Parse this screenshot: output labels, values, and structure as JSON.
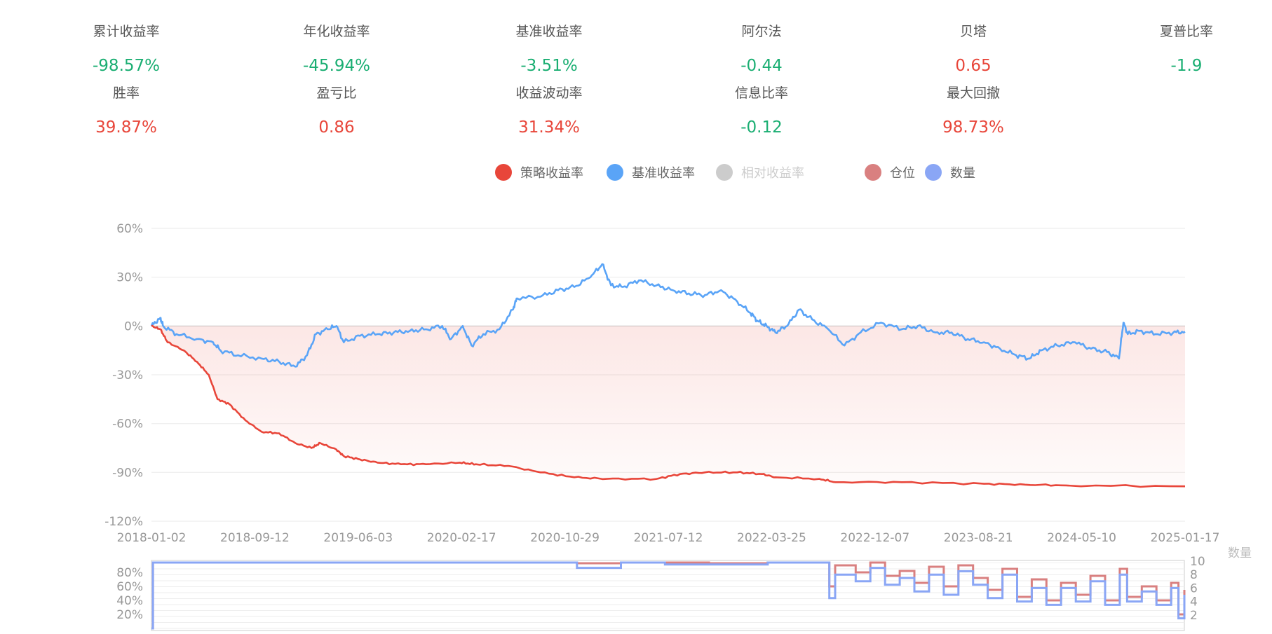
{
  "stats": [
    {
      "label": "累计收益率",
      "value": "-98.57%",
      "tone": "neg"
    },
    {
      "label": "年化收益率",
      "value": "-45.94%",
      "tone": "neg"
    },
    {
      "label": "基准收益率",
      "value": "-3.51%",
      "tone": "neg"
    },
    {
      "label": "阿尔法",
      "value": "-0.44",
      "tone": "neg"
    },
    {
      "label": "贝塔",
      "value": "0.65",
      "tone": "pos"
    },
    {
      "label": "夏普比率",
      "value": "-1.9",
      "tone": "neg"
    },
    {
      "label": "胜率",
      "value": "39.87%",
      "tone": "pos"
    },
    {
      "label": "盈亏比",
      "value": "0.86",
      "tone": "pos"
    },
    {
      "label": "收益波动率",
      "value": "31.34%",
      "tone": "pos"
    },
    {
      "label": "信息比率",
      "value": "-0.12",
      "tone": "neg"
    },
    {
      "label": "最大回撤",
      "value": "98.73%",
      "tone": "pos"
    }
  ],
  "legend": [
    {
      "label": "策略收益率",
      "color": "#e8463a",
      "active": true
    },
    {
      "label": "基准收益率",
      "color": "#5aa4f7",
      "active": true
    },
    {
      "label": "相对收益率",
      "color": "#cccccc",
      "active": false
    },
    {
      "label": "仓位",
      "color": "#d98080",
      "active": true
    },
    {
      "label": "数量",
      "color": "#8aa6f5",
      "active": true
    }
  ],
  "chart_data": [
    {
      "type": "line",
      "x_unit": "year",
      "xlim": [
        2018.0,
        2025.04
      ],
      "ylim": [
        -120,
        60
      ],
      "yticks": [
        60,
        30,
        0,
        -30,
        -60,
        -90,
        -120
      ],
      "ytick_labels": [
        "60%",
        "30%",
        "0%",
        "-30%",
        "-60%",
        "-90%",
        "-120%"
      ],
      "xtick_labels": [
        "2018-01-02",
        "2018-09-12",
        "2019-06-03",
        "2020-02-17",
        "2020-10-29",
        "2021-07-12",
        "2022-03-25",
        "2022-12-07",
        "2023-08-21",
        "2024-05-10",
        "2025-01-17"
      ],
      "series": [
        {
          "name": "策略收益率",
          "color": "#e8463a",
          "points": [
            [
              2018.0,
              0
            ],
            [
              2018.06,
              -2
            ],
            [
              2018.11,
              -10
            ],
            [
              2018.22,
              -15
            ],
            [
              2018.31,
              -22
            ],
            [
              2018.39,
              -30
            ],
            [
              2018.45,
              -45
            ],
            [
              2018.53,
              -48
            ],
            [
              2018.64,
              -58
            ],
            [
              2018.75,
              -65
            ],
            [
              2018.87,
              -66
            ],
            [
              2018.98,
              -72
            ],
            [
              2019.09,
              -75
            ],
            [
              2019.15,
              -72
            ],
            [
              2019.26,
              -76
            ],
            [
              2019.31,
              -80
            ],
            [
              2019.42,
              -82
            ],
            [
              2019.54,
              -84
            ],
            [
              2019.7,
              -85
            ],
            [
              2019.87,
              -85
            ],
            [
              2020.1,
              -84
            ],
            [
              2020.21,
              -85
            ],
            [
              2020.43,
              -86
            ],
            [
              2020.65,
              -90
            ],
            [
              2020.88,
              -93
            ],
            [
              2021.1,
              -94
            ],
            [
              2021.44,
              -94
            ],
            [
              2021.6,
              -91
            ],
            [
              2021.77,
              -90
            ],
            [
              2021.99,
              -90
            ],
            [
              2022.16,
              -91
            ],
            [
              2022.25,
              -93
            ],
            [
              2022.55,
              -94
            ],
            [
              2022.66,
              -96
            ],
            [
              2023.11,
              -96
            ],
            [
              2023.67,
              -97
            ],
            [
              2023.95,
              -97.5
            ],
            [
              2024.23,
              -98
            ],
            [
              2025.04,
              -98.57
            ]
          ]
        },
        {
          "name": "基准收益率",
          "color": "#5aa4f7",
          "points": [
            [
              2018.0,
              0
            ],
            [
              2018.06,
              5
            ],
            [
              2018.08,
              0
            ],
            [
              2018.17,
              -5
            ],
            [
              2018.31,
              -8
            ],
            [
              2018.42,
              -10
            ],
            [
              2018.47,
              -15
            ],
            [
              2018.59,
              -18
            ],
            [
              2018.75,
              -20
            ],
            [
              2018.87,
              -22
            ],
            [
              2018.98,
              -25
            ],
            [
              2019.06,
              -18
            ],
            [
              2019.12,
              -5
            ],
            [
              2019.2,
              -2
            ],
            [
              2019.26,
              0
            ],
            [
              2019.31,
              -10
            ],
            [
              2019.42,
              -6
            ],
            [
              2019.54,
              -5
            ],
            [
              2019.65,
              -4
            ],
            [
              2019.76,
              -3
            ],
            [
              2019.87,
              -2
            ],
            [
              2019.98,
              0
            ],
            [
              2020.04,
              -8
            ],
            [
              2020.12,
              0
            ],
            [
              2020.18,
              -12
            ],
            [
              2020.26,
              -5
            ],
            [
              2020.37,
              -2
            ],
            [
              2020.46,
              10
            ],
            [
              2020.49,
              17
            ],
            [
              2020.65,
              18
            ],
            [
              2020.77,
              22
            ],
            [
              2020.88,
              24
            ],
            [
              2020.99,
              30
            ],
            [
              2021.07,
              38
            ],
            [
              2021.13,
              25
            ],
            [
              2021.21,
              24
            ],
            [
              2021.32,
              28
            ],
            [
              2021.44,
              25
            ],
            [
              2021.55,
              22
            ],
            [
              2021.66,
              20
            ],
            [
              2021.77,
              19
            ],
            [
              2021.88,
              22
            ],
            [
              2021.99,
              15
            ],
            [
              2022.08,
              8
            ],
            [
              2022.13,
              3
            ],
            [
              2022.19,
              0
            ],
            [
              2022.25,
              -4
            ],
            [
              2022.33,
              0
            ],
            [
              2022.41,
              10
            ],
            [
              2022.5,
              4
            ],
            [
              2022.61,
              -2
            ],
            [
              2022.72,
              -12
            ],
            [
              2022.83,
              -4
            ],
            [
              2022.97,
              2
            ],
            [
              2023.11,
              -2
            ],
            [
              2023.22,
              0
            ],
            [
              2023.34,
              -4
            ],
            [
              2023.45,
              -4
            ],
            [
              2023.56,
              -8
            ],
            [
              2023.67,
              -10
            ],
            [
              2023.78,
              -14
            ],
            [
              2023.89,
              -18
            ],
            [
              2023.98,
              -20
            ],
            [
              2024.06,
              -15
            ],
            [
              2024.17,
              -12
            ],
            [
              2024.29,
              -10
            ],
            [
              2024.4,
              -14
            ],
            [
              2024.51,
              -16
            ],
            [
              2024.59,
              -20
            ],
            [
              2024.62,
              2
            ],
            [
              2024.65,
              -5
            ],
            [
              2024.73,
              -3
            ],
            [
              2024.84,
              -5
            ],
            [
              2024.96,
              -4
            ],
            [
              2025.04,
              -3.51
            ]
          ]
        }
      ]
    },
    {
      "type": "line",
      "x_unit": "year",
      "xlim": [
        2018.0,
        2025.04
      ],
      "left_axis": {
        "ylim": [
          0,
          100
        ],
        "tick_labels": [
          "80%",
          "60%",
          "40%",
          "20%"
        ]
      },
      "right_axis": {
        "name": "数量",
        "ylim": [
          0,
          10
        ],
        "tick_labels": [
          "10",
          "8",
          "6",
          "4",
          "2"
        ]
      },
      "series": [
        {
          "name": "仓位",
          "color": "#d98080",
          "axis": "left",
          "points": [
            [
              2018.0,
              0
            ],
            [
              2018.01,
              97
            ],
            [
              2018.1,
              100
            ],
            [
              2019.0,
              99
            ],
            [
              2019.5,
              98
            ],
            [
              2020.0,
              99
            ],
            [
              2020.5,
              97
            ],
            [
              2020.9,
              93
            ],
            [
              2021.2,
              95
            ],
            [
              2021.5,
              96
            ],
            [
              2021.8,
              93
            ],
            [
              2022.2,
              95
            ],
            [
              2022.5,
              96
            ],
            [
              2022.62,
              60
            ],
            [
              2022.66,
              90
            ],
            [
              2022.8,
              80
            ],
            [
              2022.9,
              95
            ],
            [
              2023.0,
              75
            ],
            [
              2023.1,
              82
            ],
            [
              2023.2,
              65
            ],
            [
              2023.3,
              88
            ],
            [
              2023.4,
              60
            ],
            [
              2023.5,
              90
            ],
            [
              2023.6,
              72
            ],
            [
              2023.7,
              55
            ],
            [
              2023.8,
              85
            ],
            [
              2023.9,
              45
            ],
            [
              2024.0,
              70
            ],
            [
              2024.1,
              40
            ],
            [
              2024.2,
              65
            ],
            [
              2024.3,
              48
            ],
            [
              2024.4,
              75
            ],
            [
              2024.5,
              40
            ],
            [
              2024.6,
              85
            ],
            [
              2024.65,
              45
            ],
            [
              2024.75,
              60
            ],
            [
              2024.85,
              40
            ],
            [
              2024.95,
              65
            ],
            [
              2025.0,
              20
            ],
            [
              2025.04,
              55
            ]
          ]
        },
        {
          "name": "数量",
          "color": "#8aa6f5",
          "axis": "right",
          "points": [
            [
              2018.0,
              0
            ],
            [
              2018.01,
              10
            ],
            [
              2018.1,
              11
            ],
            [
              2018.3,
              11
            ],
            [
              2018.35,
              10
            ],
            [
              2019.0,
              10
            ],
            [
              2019.3,
              10.5
            ],
            [
              2019.5,
              10
            ],
            [
              2020.5,
              10
            ],
            [
              2020.9,
              9
            ],
            [
              2021.2,
              10
            ],
            [
              2021.5,
              9.5
            ],
            [
              2021.8,
              9.5
            ],
            [
              2022.2,
              10
            ],
            [
              2022.5,
              10
            ],
            [
              2022.62,
              4.5
            ],
            [
              2022.66,
              8
            ],
            [
              2022.8,
              7
            ],
            [
              2022.9,
              9
            ],
            [
              2023.0,
              6.5
            ],
            [
              2023.1,
              7.5
            ],
            [
              2023.2,
              5.5
            ],
            [
              2023.3,
              8
            ],
            [
              2023.4,
              5
            ],
            [
              2023.5,
              8.5
            ],
            [
              2023.6,
              6.5
            ],
            [
              2023.7,
              4.5
            ],
            [
              2023.8,
              8
            ],
            [
              2023.9,
              4
            ],
            [
              2024.0,
              6
            ],
            [
              2024.1,
              3.5
            ],
            [
              2024.2,
              6
            ],
            [
              2024.3,
              4
            ],
            [
              2024.4,
              7
            ],
            [
              2024.5,
              3.5
            ],
            [
              2024.6,
              8
            ],
            [
              2024.65,
              4
            ],
            [
              2024.75,
              5.5
            ],
            [
              2024.85,
              3.5
            ],
            [
              2024.95,
              6
            ],
            [
              2025.0,
              1.5
            ],
            [
              2025.04,
              5
            ]
          ]
        }
      ]
    }
  ]
}
